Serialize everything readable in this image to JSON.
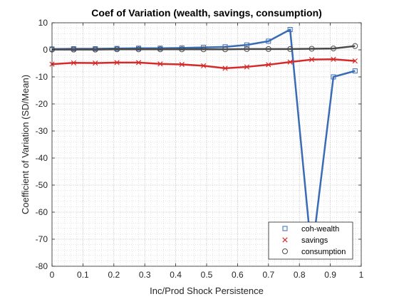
{
  "chart_data": {
    "type": "line",
    "title": "Coef of Variation (wealth, savings, consumption)",
    "xlabel": "Inc/Prod Shock Persistence",
    "ylabel": "Coefficient of Variation (SD/Mean)",
    "xlim": [
      0,
      1
    ],
    "ylim": [
      -80,
      10
    ],
    "xticks": [
      0,
      0.1,
      0.2,
      0.3,
      0.4,
      0.5,
      0.6,
      0.7,
      0.8,
      0.9,
      1
    ],
    "xtick_labels": [
      "0",
      "0.1",
      "0.2",
      "0.3",
      "0.4",
      "0.5",
      "0.6",
      "0.7",
      "0.8",
      "0.9",
      "1"
    ],
    "yticks": [
      10,
      0,
      -10,
      -20,
      -30,
      -40,
      -50,
      -60,
      -70,
      -80
    ],
    "ytick_labels": [
      "10",
      "0",
      "-10",
      "-20",
      "-30",
      "-40",
      "-50",
      "-60",
      "-70",
      "-80"
    ],
    "grid": "major and minor (dotted)",
    "legend_position": "bottom-right",
    "x": [
      0,
      0.07,
      0.14,
      0.21,
      0.28,
      0.35,
      0.42,
      0.49,
      0.56,
      0.63,
      0.7,
      0.77,
      0.84,
      0.91,
      0.98
    ],
    "series": [
      {
        "name": "coh-wealth",
        "color": "#3a6bb5",
        "marker": "square",
        "values": [
          0.3,
          0.4,
          0.4,
          0.5,
          0.6,
          0.6,
          0.7,
          0.9,
          1.1,
          1.8,
          3.2,
          7.5,
          -76.0,
          -10.0,
          -7.8
        ]
      },
      {
        "name": "savings",
        "color": "#d62a2a",
        "marker": "x",
        "values": [
          -5.3,
          -4.8,
          -4.9,
          -4.7,
          -4.7,
          -5.2,
          -5.4,
          -5.9,
          -6.8,
          -6.3,
          -5.5,
          -4.5,
          -3.6,
          -3.5,
          -4.1
        ]
      },
      {
        "name": "consumption",
        "color": "#4a4a4a",
        "marker": "circle",
        "values": [
          0.1,
          0.1,
          0.1,
          0.2,
          0.2,
          0.2,
          0.2,
          0.2,
          0.2,
          0.3,
          0.3,
          0.3,
          0.4,
          0.5,
          1.4
        ]
      }
    ]
  }
}
